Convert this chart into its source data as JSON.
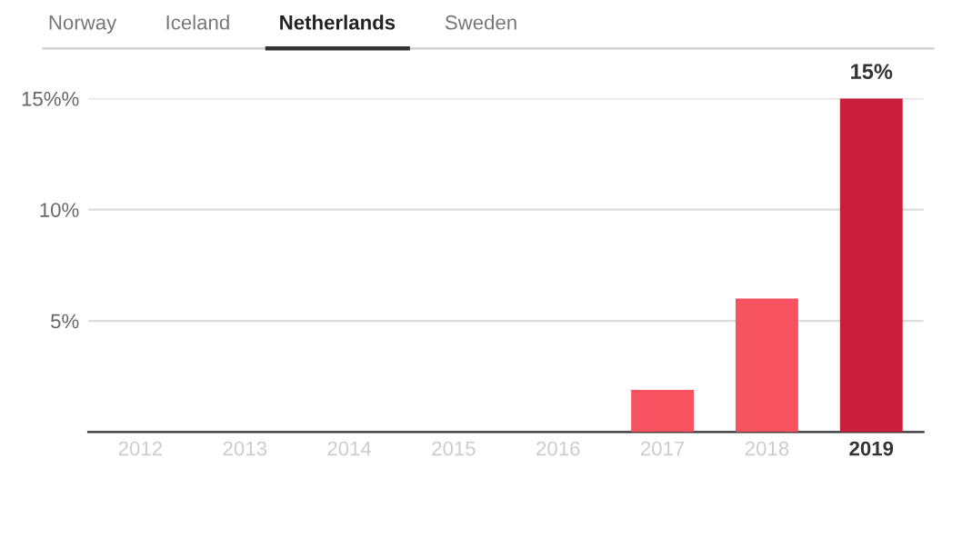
{
  "chart_data": {
    "type": "bar",
    "title": "Netherlands",
    "annotations": [
      "Norway",
      "Iceland",
      "Sweden"
    ],
    "categories": [
      "2012",
      "2013",
      "2014",
      "2015",
      "2016",
      "2017",
      "2018",
      "2019"
    ],
    "values": [
      0,
      0,
      0,
      0,
      0,
      1.9,
      6.0,
      15
    ],
    "colors": [
      "#f7525f",
      "#f7525f",
      "#f7525f",
      "#f7525f",
      "#f7525f",
      "#f7525f",
      "#f7525f",
      "#c91f3c"
    ],
    "value_labels": [
      null,
      null,
      null,
      null,
      null,
      null,
      null,
      "15%"
    ],
    "ylim": [
      0,
      15
    ],
    "yticks": [
      {
        "value": 0,
        "label": null
      },
      {
        "value": 5,
        "label": "5%"
      },
      {
        "value": 10,
        "label": "10%"
      },
      {
        "value": 15,
        "label": "15%%"
      }
    ],
    "grid": "y"
  }
}
